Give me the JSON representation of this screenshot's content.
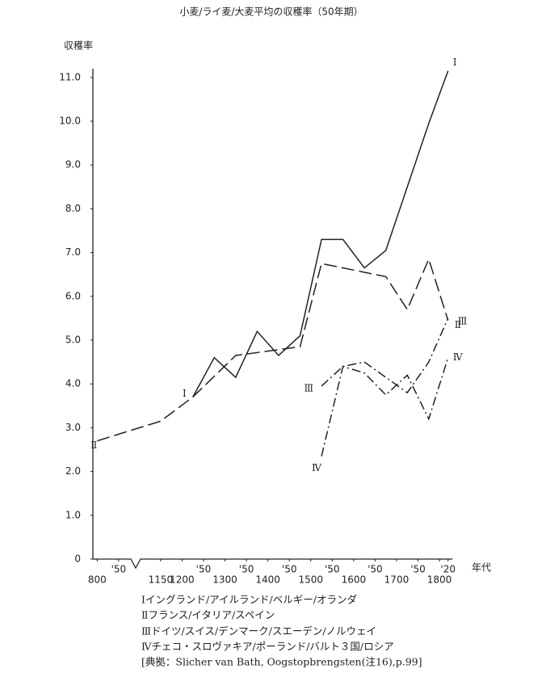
{
  "chart_data": {
    "type": "line",
    "title": "小麦/ライ麦/大麦平均の収穫率（50年期）",
    "ylabel": "収穫率",
    "xlabel": "年代",
    "xlim": [
      790,
      1830
    ],
    "xbreak": [
      850,
      1150
    ],
    "ylim": [
      0,
      11.2
    ],
    "yticks": [
      0,
      {
        "value": 1,
        "label": "1.0"
      },
      {
        "value": 2,
        "label": "2.0"
      },
      {
        "value": 3,
        "label": "3.0"
      },
      {
        "value": 4,
        "label": "4.0"
      },
      {
        "value": 5,
        "label": "5.0"
      },
      {
        "value": 6,
        "label": "6.0"
      },
      {
        "value": 7,
        "label": "7.0"
      },
      {
        "value": 8,
        "label": "8.0"
      },
      {
        "value": 9,
        "label": "9.0"
      },
      {
        "value": 10,
        "label": "10.0"
      },
      {
        "value": 11,
        "label": "11.0"
      }
    ],
    "xticks": [
      800,
      {
        "value": 850,
        "label": "'50"
      },
      1150,
      1200,
      {
        "value": 1250,
        "label": "'50"
      },
      1300,
      {
        "value": 1350,
        "label": "'50"
      },
      1400,
      {
        "value": 1450,
        "label": "'50"
      },
      1500,
      {
        "value": 1550,
        "label": "'50"
      },
      1600,
      {
        "value": 1650,
        "label": "'50"
      },
      1700,
      {
        "value": 1750,
        "label": "'50"
      },
      1800,
      {
        "value": 1820,
        "label": "'20"
      }
    ],
    "series": [
      {
        "name": "Ⅰ",
        "color": "#222222",
        "dash": "solid",
        "x": [
          1225,
          1275,
          1325,
          1375,
          1425,
          1475,
          1525,
          1575,
          1625,
          1675,
          1775,
          1820
        ],
        "values": [
          3.7,
          4.6,
          4.15,
          5.2,
          4.65,
          5.1,
          7.3,
          7.3,
          6.65,
          7.05,
          9.95,
          11.15
        ]
      },
      {
        "name": "Ⅱ",
        "color": "#222222",
        "dash": "dashed",
        "x": [
          800,
          1150,
          1225,
          1325,
          1475,
          1525,
          1675,
          1725,
          1775,
          1820
        ],
        "values": [
          2.7,
          3.15,
          3.7,
          4.65,
          4.85,
          6.75,
          6.45,
          5.7,
          6.85,
          5.45
        ]
      },
      {
        "name": "Ⅲ",
        "color": "#222222",
        "dash": "dashdot",
        "x": [
          1525,
          1575,
          1625,
          1725,
          1775,
          1820
        ],
        "values": [
          3.95,
          4.4,
          4.5,
          3.8,
          4.5,
          5.5
        ]
      },
      {
        "name": "Ⅳ",
        "color": "#222222",
        "dash": "dashdot",
        "x": [
          1525,
          1575,
          1625,
          1675,
          1725,
          1775,
          1820
        ],
        "values": [
          2.35,
          4.4,
          4.25,
          3.75,
          4.2,
          3.2,
          4.6
        ]
      }
    ],
    "legend": [
      "Ⅰイングランド/アイルランド/ベルギー/オランダ",
      "Ⅱフランス/イタリア/スペイン",
      "Ⅲドイツ/スイス/デンマーク/スエーデン/ノルウェイ",
      "Ⅳチェコ・スロヴァキア/ポーランド/バルト３国/ロシア"
    ],
    "source": "[典拠：Slicher van Bath, Oogstopbrengsten(注16),p.99]"
  }
}
